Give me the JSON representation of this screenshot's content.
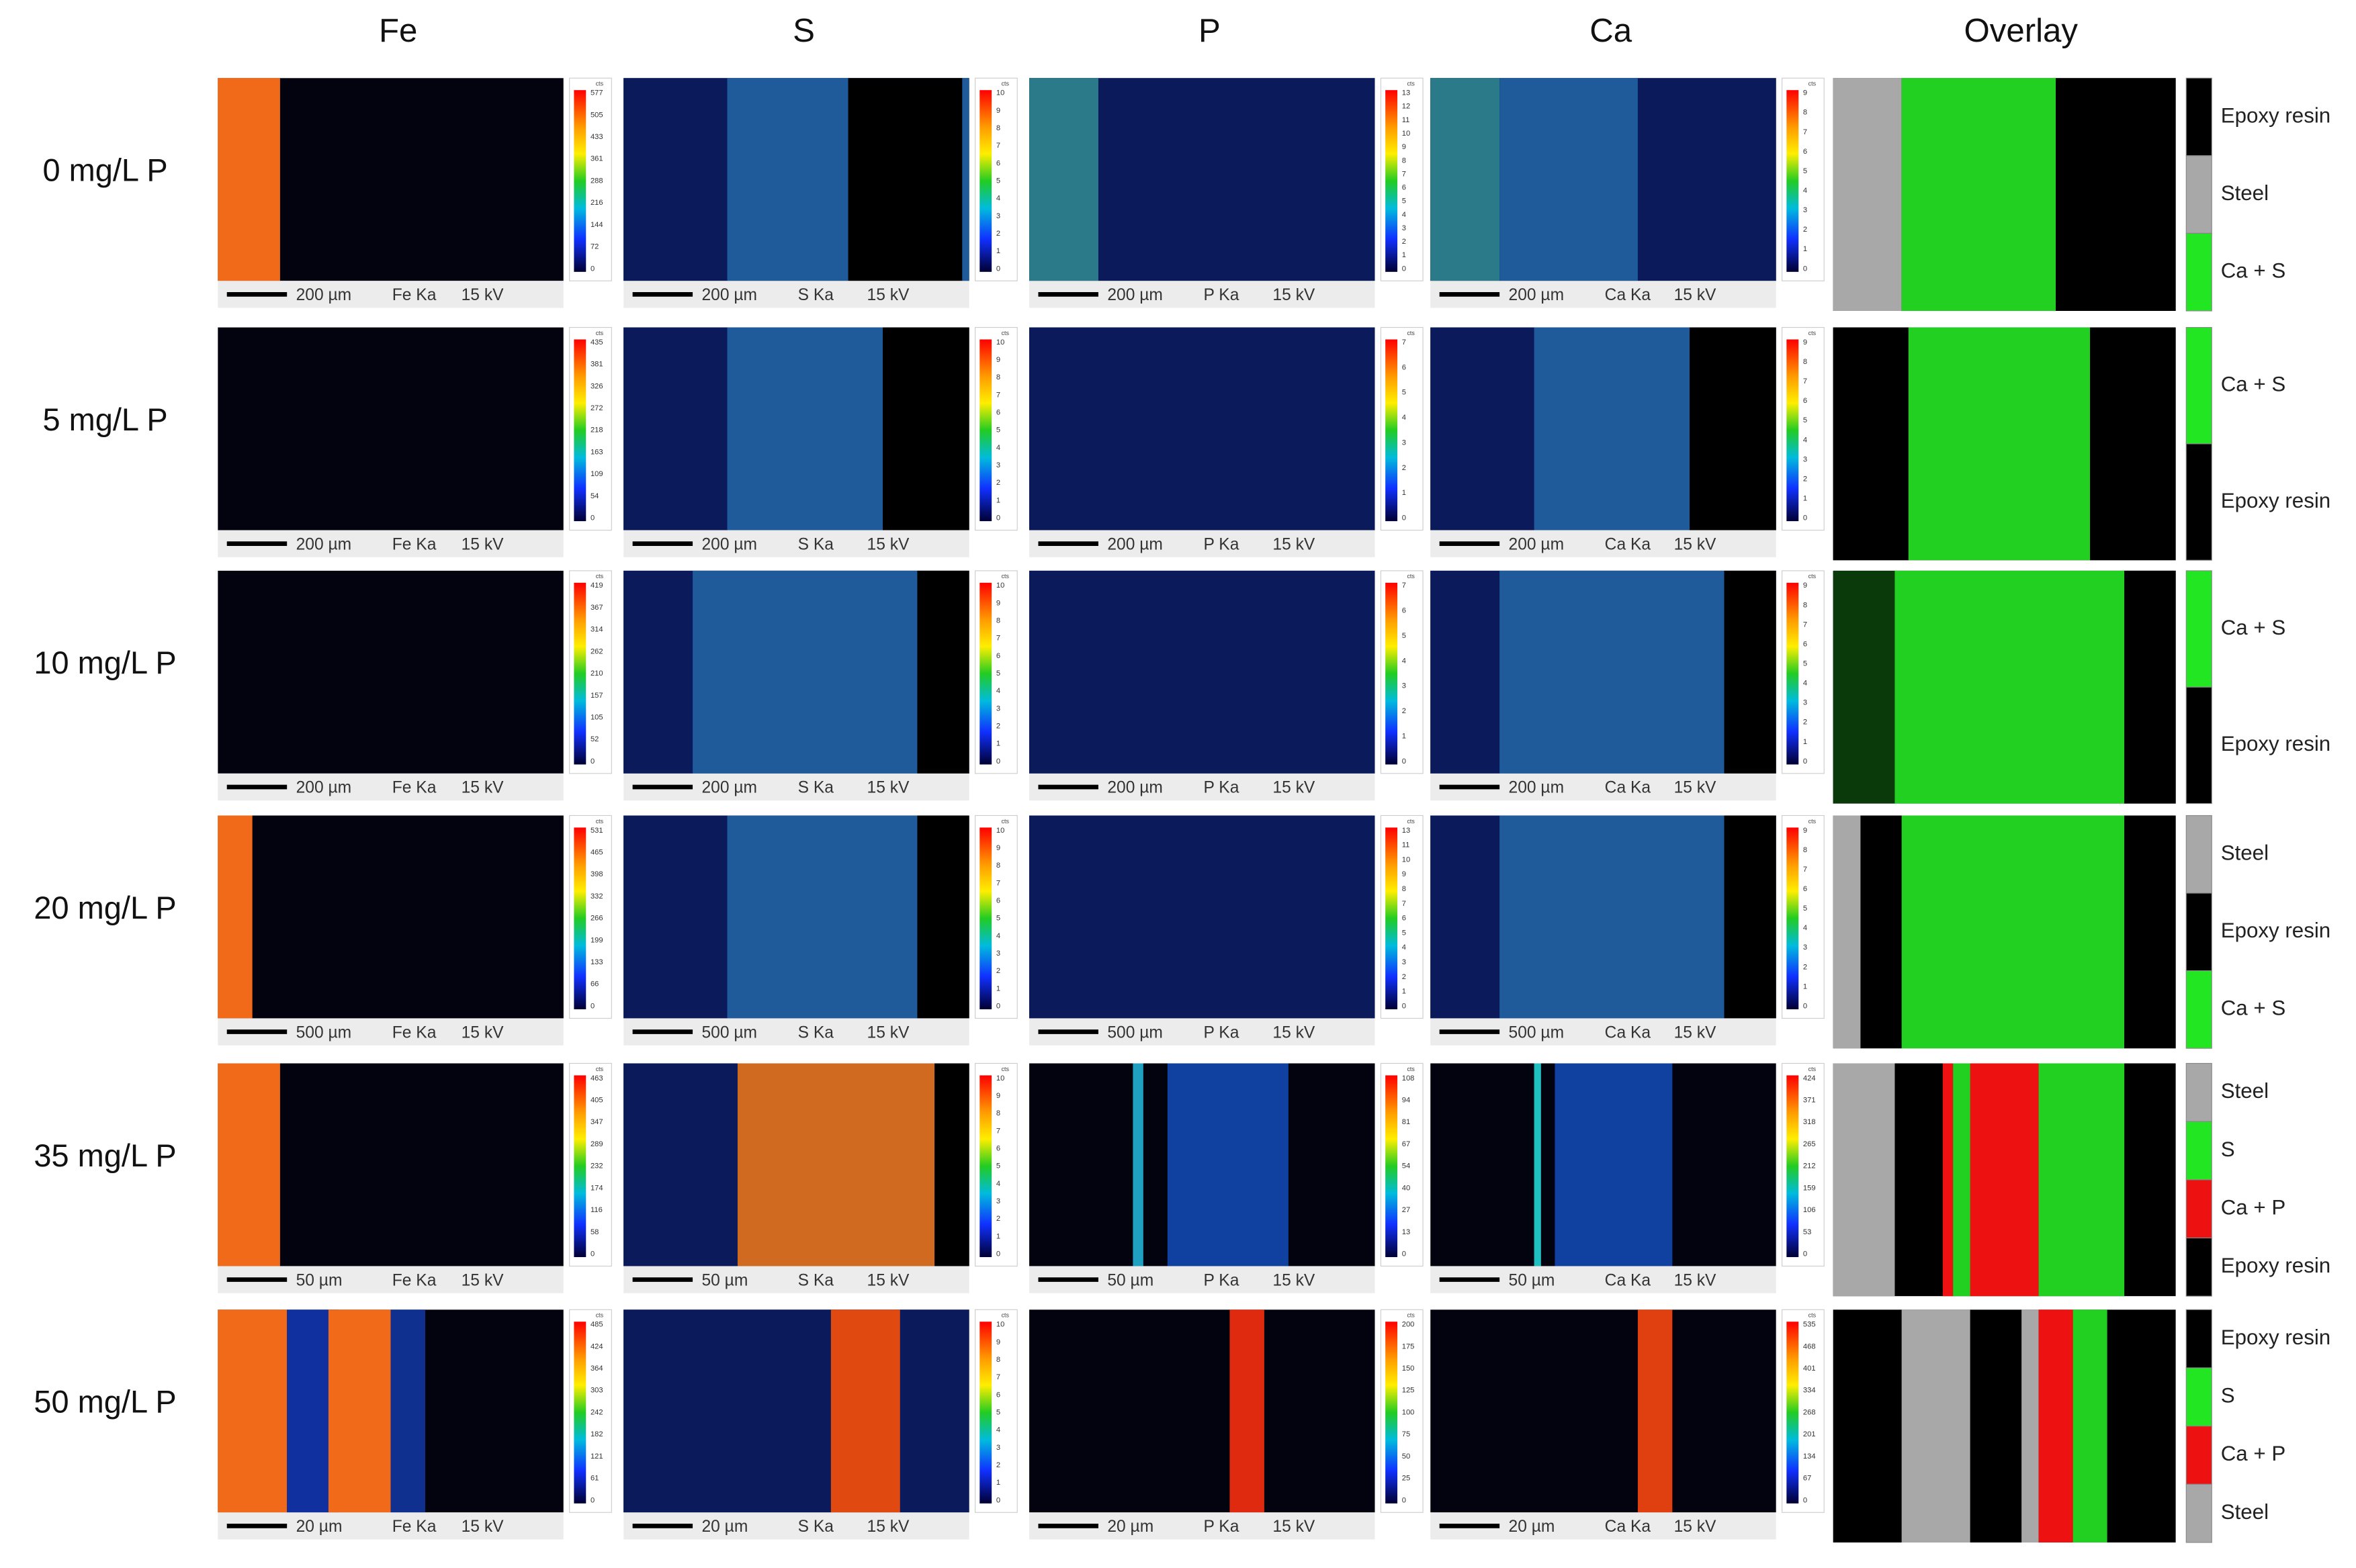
{
  "columns": [
    "Fe",
    "S",
    "P",
    "Ca",
    "Overlay"
  ],
  "rows": [
    {
      "label": "0 mg/L P",
      "scale": "200 µm",
      "maps": [
        {
          "line": "Fe Ka",
          "kv": "15 kV",
          "colorbar": {
            "unit": "cts",
            "ticks": [
              577,
              505,
              433,
              361,
              288,
              216,
              144,
              72,
              0
            ]
          }
        },
        {
          "line": "S Ka",
          "kv": "15 kV",
          "colorbar": {
            "unit": "cts",
            "ticks": [
              10,
              9,
              8,
              7,
              6,
              5,
              4,
              3,
              2,
              1,
              0
            ]
          }
        },
        {
          "line": "P Ka",
          "kv": "15 kV",
          "colorbar": {
            "unit": "cts",
            "ticks": [
              13,
              12,
              11,
              10,
              9,
              8,
              7,
              6,
              5,
              4,
              3,
              2,
              1,
              0
            ]
          }
        },
        {
          "line": "Ca Ka",
          "kv": "15 kV",
          "colorbar": {
            "unit": "cts",
            "ticks": [
              9,
              8,
              7,
              6,
              5,
              4,
              3,
              2,
              1,
              0
            ]
          }
        }
      ],
      "legend": [
        {
          "label": "Epoxy resin",
          "color": "#000000"
        },
        {
          "label": "Steel",
          "color": "#a8a8a8"
        },
        {
          "label": "Ca + S",
          "color": "#22e622"
        }
      ]
    },
    {
      "label": "5 mg/L P",
      "scale": "200 µm",
      "maps": [
        {
          "line": "Fe Ka",
          "kv": "15 kV",
          "colorbar": {
            "unit": "cts",
            "ticks": [
              435,
              381,
              326,
              272,
              218,
              163,
              109,
              54,
              0
            ]
          }
        },
        {
          "line": "S Ka",
          "kv": "15 kV",
          "colorbar": {
            "unit": "cts",
            "ticks": [
              10,
              9,
              8,
              7,
              6,
              5,
              4,
              3,
              2,
              1,
              0
            ]
          }
        },
        {
          "line": "P Ka",
          "kv": "15 kV",
          "colorbar": {
            "unit": "cts",
            "ticks": [
              7,
              6,
              5,
              4,
              3,
              2,
              1,
              0
            ]
          }
        },
        {
          "line": "Ca Ka",
          "kv": "15 kV",
          "colorbar": {
            "unit": "cts",
            "ticks": [
              9,
              8,
              7,
              6,
              5,
              4,
              3,
              2,
              1,
              0
            ]
          }
        }
      ],
      "legend": [
        {
          "label": "Ca + S",
          "color": "#22e622"
        },
        {
          "label": "Epoxy resin",
          "color": "#000000"
        }
      ]
    },
    {
      "label": "10 mg/L P",
      "scale": "200 µm",
      "maps": [
        {
          "line": "Fe Ka",
          "kv": "15 kV",
          "colorbar": {
            "unit": "cts",
            "ticks": [
              419,
              367,
              314,
              262,
              210,
              157,
              105,
              52,
              0
            ]
          }
        },
        {
          "line": "S Ka",
          "kv": "15 kV",
          "colorbar": {
            "unit": "cts",
            "ticks": [
              10,
              9,
              8,
              7,
              6,
              5,
              4,
              3,
              2,
              1,
              0
            ]
          }
        },
        {
          "line": "P Ka",
          "kv": "15 kV",
          "colorbar": {
            "unit": "cts",
            "ticks": [
              7,
              6,
              5,
              4,
              3,
              2,
              1,
              0
            ]
          }
        },
        {
          "line": "Ca Ka",
          "kv": "15 kV",
          "colorbar": {
            "unit": "cts",
            "ticks": [
              9,
              8,
              7,
              6,
              5,
              4,
              3,
              2,
              1,
              0
            ]
          }
        }
      ],
      "legend": [
        {
          "label": "Ca + S",
          "color": "#22e622"
        },
        {
          "label": "Epoxy resin",
          "color": "#000000"
        }
      ]
    },
    {
      "label": "20 mg/L P",
      "scale": "500 µm",
      "maps": [
        {
          "line": "Fe Ka",
          "kv": "15 kV",
          "colorbar": {
            "unit": "cts",
            "ticks": [
              531,
              465,
              398,
              332,
              266,
              199,
              133,
              66,
              0
            ]
          }
        },
        {
          "line": "S Ka",
          "kv": "15 kV",
          "colorbar": {
            "unit": "cts",
            "ticks": [
              10,
              9,
              8,
              7,
              6,
              5,
              4,
              3,
              2,
              1,
              0
            ]
          }
        },
        {
          "line": "P Ka",
          "kv": "15 kV",
          "colorbar": {
            "unit": "cts",
            "ticks": [
              13,
              11,
              10,
              9,
              8,
              7,
              6,
              5,
              4,
              3,
              2,
              1,
              0
            ]
          }
        },
        {
          "line": "Ca Ka",
          "kv": "15 kV",
          "colorbar": {
            "unit": "cts",
            "ticks": [
              9,
              8,
              7,
              6,
              5,
              4,
              3,
              2,
              1,
              0
            ]
          }
        }
      ],
      "legend": [
        {
          "label": "Steel",
          "color": "#a8a8a8"
        },
        {
          "label": "Epoxy resin",
          "color": "#000000"
        },
        {
          "label": "Ca + S",
          "color": "#22e622"
        }
      ]
    },
    {
      "label": "35 mg/L P",
      "scale": "50 µm",
      "maps": [
        {
          "line": "Fe Ka",
          "kv": "15 kV",
          "colorbar": {
            "unit": "cts",
            "ticks": [
              463,
              405,
              347,
              289,
              232,
              174,
              116,
              58,
              0
            ]
          }
        },
        {
          "line": "S Ka",
          "kv": "15 kV",
          "colorbar": {
            "unit": "cts",
            "ticks": [
              10,
              9,
              8,
              7,
              6,
              5,
              4,
              3,
              2,
              1,
              0
            ]
          }
        },
        {
          "line": "P Ka",
          "kv": "15 kV",
          "colorbar": {
            "unit": "cts",
            "ticks": [
              108,
              94,
              81,
              67,
              54,
              40,
              27,
              13,
              0
            ]
          }
        },
        {
          "line": "Ca Ka",
          "kv": "15 kV",
          "colorbar": {
            "unit": "cts",
            "ticks": [
              424,
              371,
              318,
              265,
              212,
              159,
              106,
              53,
              0
            ]
          }
        }
      ],
      "legend": [
        {
          "label": "Steel",
          "color": "#a8a8a8"
        },
        {
          "label": "S",
          "color": "#22e622"
        },
        {
          "label": "Ca + P",
          "color": "#ee1111"
        },
        {
          "label": "Epoxy resin",
          "color": "#000000"
        }
      ]
    },
    {
      "label": "50 mg/L P",
      "scale": "20 µm",
      "maps": [
        {
          "line": "Fe Ka",
          "kv": "15 kV",
          "colorbar": {
            "unit": "cts",
            "ticks": [
              485,
              424,
              364,
              303,
              242,
              182,
              121,
              61,
              0
            ]
          }
        },
        {
          "line": "S Ka",
          "kv": "15 kV",
          "colorbar": {
            "unit": "cts",
            "ticks": [
              10,
              9,
              8,
              7,
              6,
              5,
              4,
              3,
              2,
              1,
              0
            ]
          }
        },
        {
          "line": "P Ka",
          "kv": "15 kV",
          "colorbar": {
            "unit": "cts",
            "ticks": [
              200,
              175,
              150,
              125,
              100,
              75,
              50,
              25,
              0
            ]
          }
        },
        {
          "line": "Ca Ka",
          "kv": "15 kV",
          "colorbar": {
            "unit": "cts",
            "ticks": [
              535,
              468,
              401,
              334,
              268,
              201,
              134,
              67,
              0
            ]
          }
        }
      ],
      "legend": [
        {
          "label": "Epoxy resin",
          "color": "#000000"
        },
        {
          "label": "S",
          "color": "#22e622"
        },
        {
          "label": "Ca + P",
          "color": "#ee1111"
        },
        {
          "label": "Steel",
          "color": "#a8a8a8"
        }
      ]
    }
  ]
}
